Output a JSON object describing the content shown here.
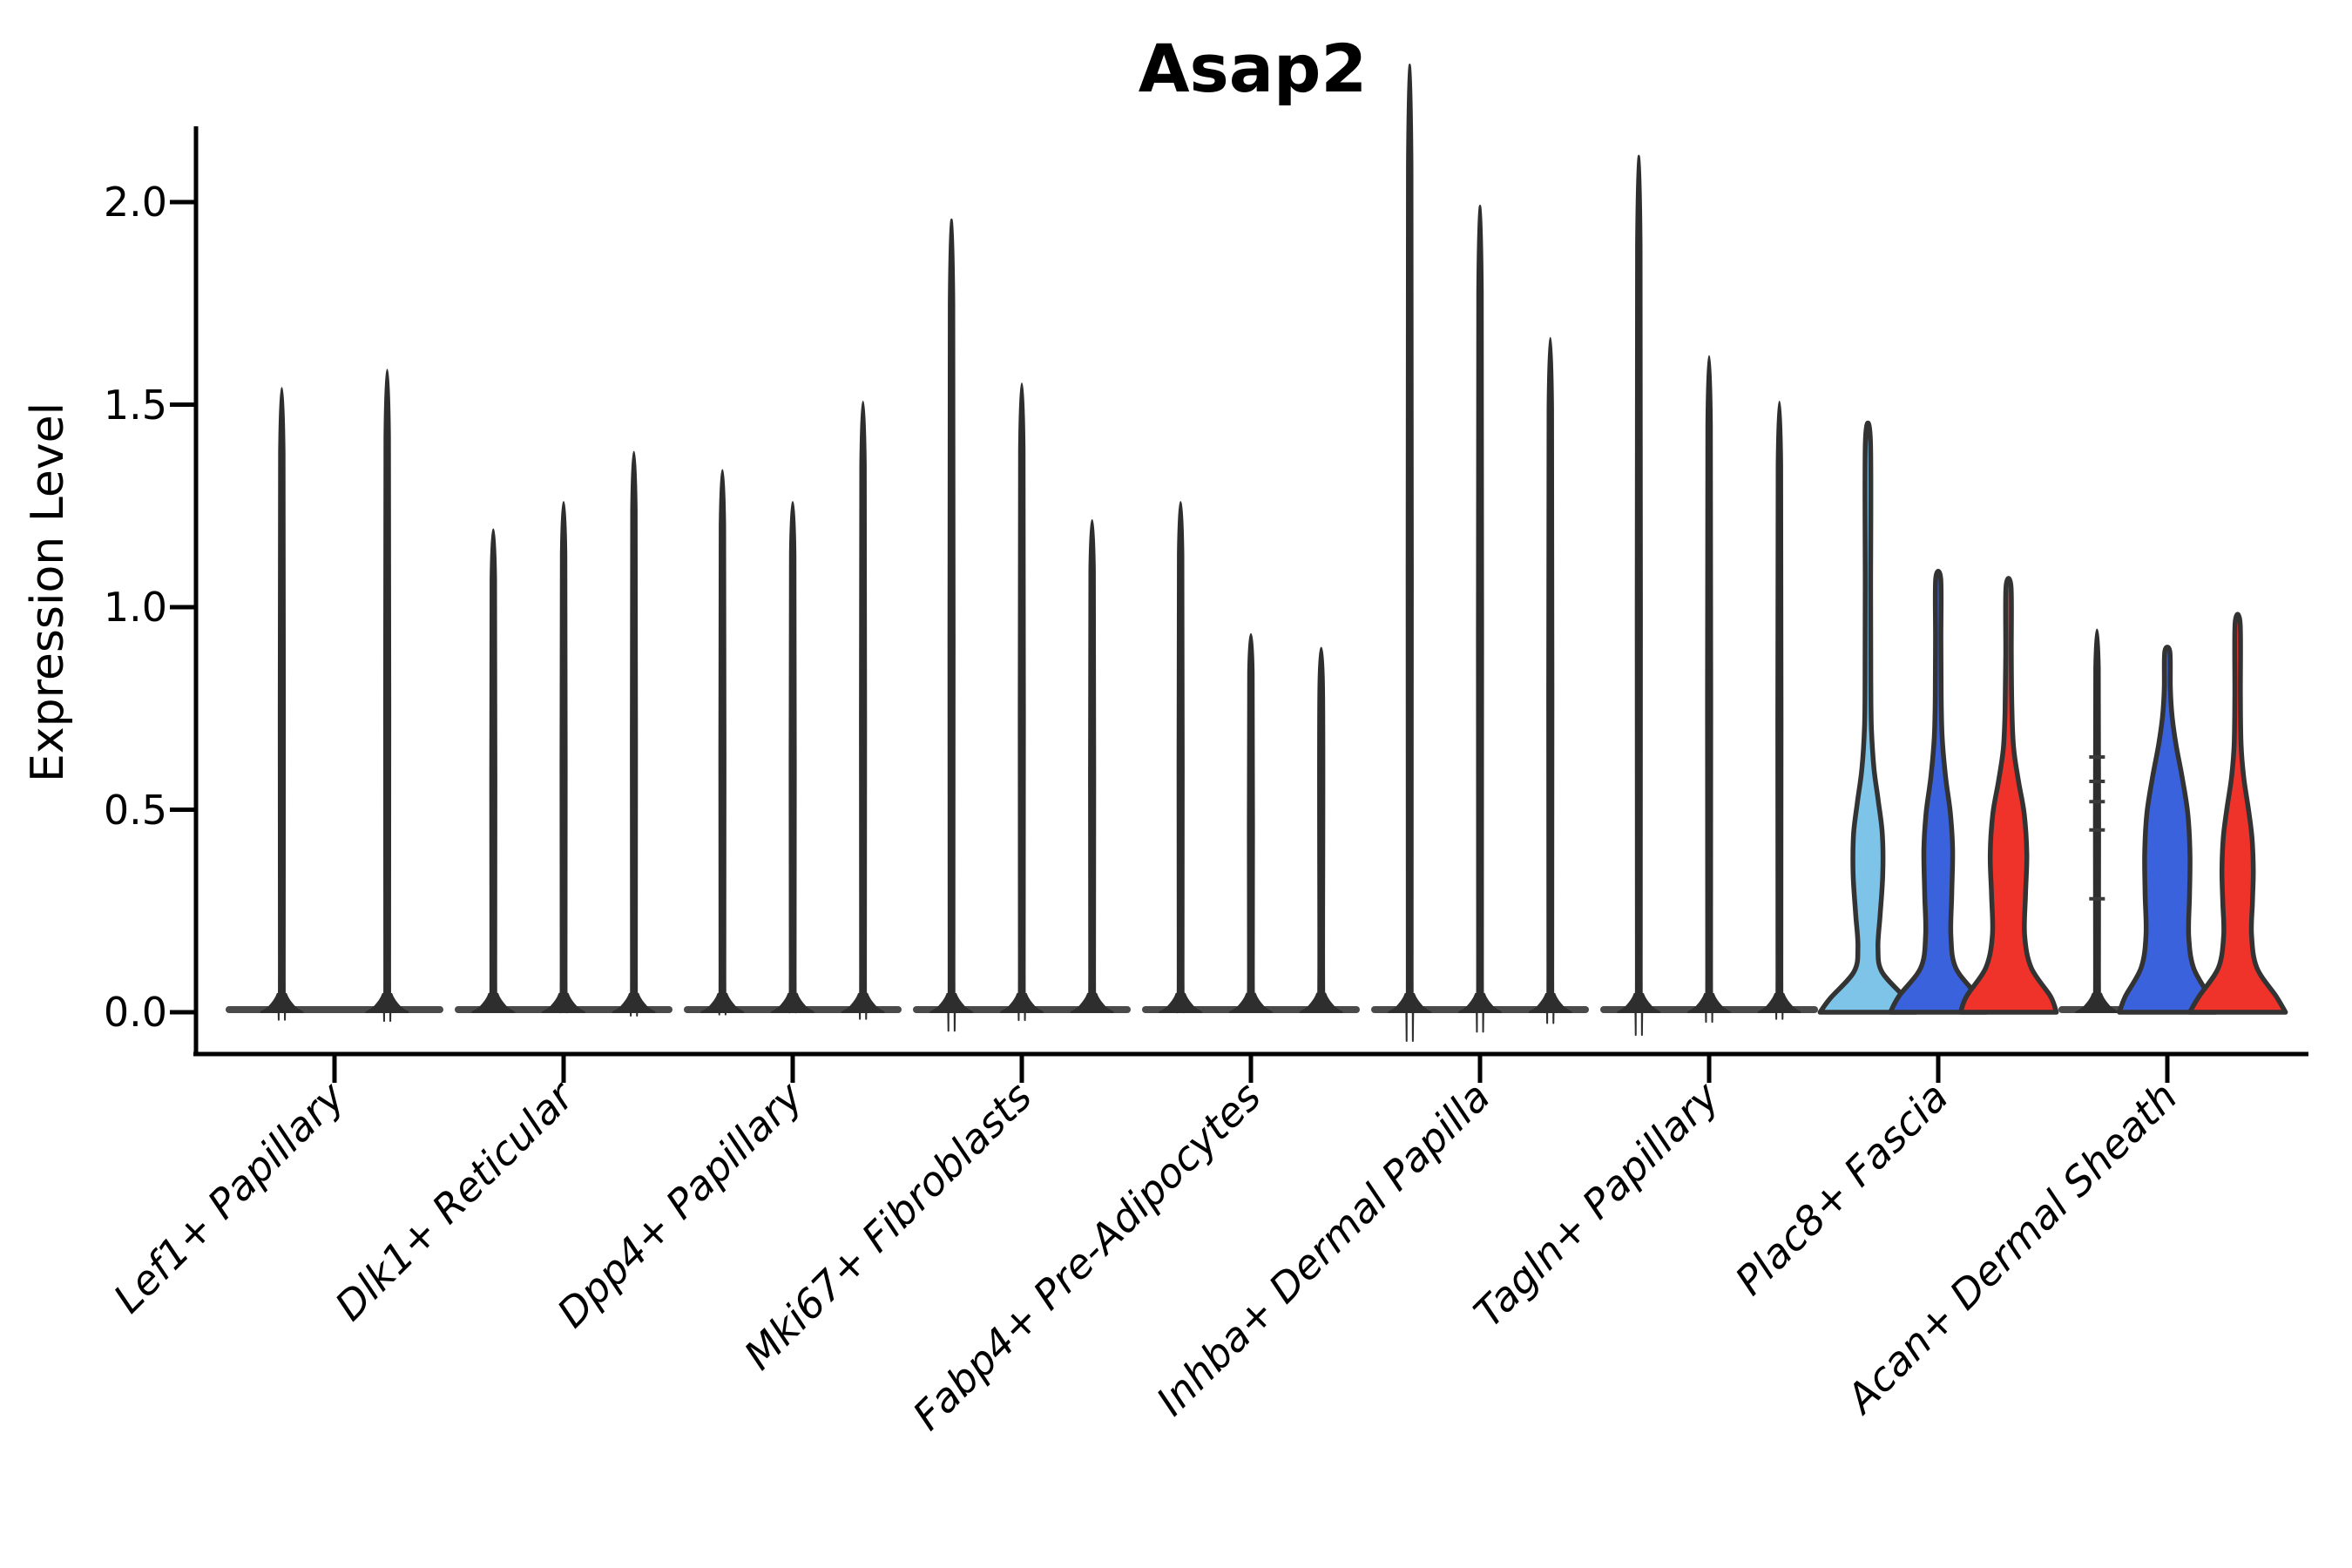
{
  "title": "Asap2",
  "y_axis": {
    "label": "Expression Level",
    "tick_labels": [
      "2.0",
      "1.5",
      "1.0",
      "0.5",
      "0.0"
    ]
  },
  "colors": {
    "axis": "#000000",
    "spike_fill": "#2e2e2e",
    "violin_stroke": "#333333",
    "baseline": "#4a4a4a",
    "light_blue": "#7EC4E8",
    "blue": "#3A62DC",
    "red": "#EF332B"
  },
  "chart_data": {
    "type": "violin",
    "title": "Asap2",
    "xlabel": "",
    "ylabel": "Expression Level",
    "ylim": [
      0,
      2.2
    ],
    "yticks": [
      0.0,
      0.5,
      1.0,
      1.5,
      2.0
    ],
    "ytick_labels": [
      "0.0",
      "0.5",
      "1.0",
      "1.5",
      "2.0"
    ],
    "grid": false,
    "legend": "none",
    "categories": [
      "Lef1+ Papillary",
      "Dlk1+ Reticular",
      "Dpp4+ Papillary",
      "Mki67+ Fibroblasts",
      "Fabp4+ Pre-Adipocytes",
      "Inhba+ Dermal Papilla",
      "Tagln+ Papillary",
      "Plac8+ Fascia",
      "Acan+ Dermal Sheath"
    ],
    "groups": [
      {
        "category": "Lef1+ Papillary",
        "violins": [
          {
            "type": "spike",
            "max": 1.38,
            "color": "#2e2e2e"
          },
          {
            "type": "spike",
            "max": 1.42,
            "color": "#2e2e2e"
          }
        ]
      },
      {
        "category": "Dlk1+ Reticular",
        "violins": [
          {
            "type": "spike",
            "max": 1.07,
            "color": "#2e2e2e"
          },
          {
            "type": "spike",
            "max": 1.13,
            "color": "#2e2e2e"
          },
          {
            "type": "spike",
            "max": 1.24,
            "color": "#2e2e2e"
          }
        ]
      },
      {
        "category": "Dpp4+ Papillary",
        "violins": [
          {
            "type": "spike",
            "max": 1.2,
            "color": "#2e2e2e"
          },
          {
            "type": "spike",
            "max": 1.13,
            "color": "#2e2e2e"
          },
          {
            "type": "spike",
            "max": 1.35,
            "color": "#2e2e2e"
          }
        ]
      },
      {
        "category": "Mki67+ Fibroblasts",
        "violins": [
          {
            "type": "spike",
            "max": 1.75,
            "color": "#2e2e2e"
          },
          {
            "type": "spike",
            "max": 1.39,
            "color": "#2e2e2e"
          },
          {
            "type": "spike",
            "max": 1.09,
            "color": "#2e2e2e"
          }
        ]
      },
      {
        "category": "Fabp4+ Pre-Adipocytes",
        "violins": [
          {
            "type": "spike",
            "max": 1.13,
            "color": "#2e2e2e"
          },
          {
            "type": "spike",
            "max": 0.84,
            "color": "#2e2e2e"
          },
          {
            "type": "spike",
            "max": 0.81,
            "color": "#2e2e2e"
          }
        ]
      },
      {
        "category": "Inhba+ Dermal Papilla",
        "violins": [
          {
            "type": "spike",
            "max": 2.09,
            "color": "#2e2e2e"
          },
          {
            "type": "spike",
            "max": 1.78,
            "color": "#2e2e2e"
          },
          {
            "type": "spike",
            "max": 1.49,
            "color": "#2e2e2e"
          }
        ]
      },
      {
        "category": "Tagln+ Papillary",
        "violins": [
          {
            "type": "spike",
            "max": 1.89,
            "color": "#2e2e2e"
          },
          {
            "type": "spike",
            "max": 1.45,
            "color": "#2e2e2e"
          },
          {
            "type": "spike",
            "max": 1.35,
            "color": "#2e2e2e"
          }
        ]
      },
      {
        "category": "Plac8+ Fascia",
        "violins": [
          {
            "type": "violin",
            "max": 1.41,
            "color": "#7EC4E8",
            "color_name": "light-blue",
            "profile": [
              [
                0,
                55
              ],
              [
                0.035,
                43
              ],
              [
                0.1,
                16
              ],
              [
                0.16,
                11.5
              ],
              [
                0.24,
                14
              ],
              [
                0.34,
                17
              ],
              [
                0.44,
                16.5
              ],
              [
                0.52,
                12
              ],
              [
                0.6,
                7
              ],
              [
                0.7,
                4
              ],
              [
                0.82,
                3.3
              ],
              [
                1.05,
                3.1
              ]
            ]
          },
          {
            "type": "violin",
            "max": 1.07,
            "color": "#3A62DC",
            "color_name": "blue",
            "profile": [
              [
                0,
                55
              ],
              [
                0.04,
                45
              ],
              [
                0.11,
                20
              ],
              [
                0.19,
                14.5
              ],
              [
                0.29,
                15.5
              ],
              [
                0.4,
                16.5
              ],
              [
                0.49,
                14
              ],
              [
                0.58,
                8.5
              ],
              [
                0.68,
                4.5
              ],
              [
                0.78,
                3.4
              ],
              [
                0.92,
                3.1
              ]
            ]
          },
          {
            "type": "violin",
            "max": 1.05,
            "color": "#EF332B",
            "color_name": "red",
            "profile": [
              [
                0,
                55
              ],
              [
                0.04,
                48
              ],
              [
                0.11,
                26
              ],
              [
                0.19,
                18.5
              ],
              [
                0.29,
                19.5
              ],
              [
                0.39,
                21
              ],
              [
                0.49,
                18
              ],
              [
                0.57,
                11.5
              ],
              [
                0.65,
                6
              ],
              [
                0.74,
                4
              ],
              [
                0.88,
                3.2
              ]
            ]
          }
        ]
      },
      {
        "category": "Acan+ Dermal Sheath",
        "violins": [
          {
            "type": "spike",
            "max": 0.85,
            "color": "#2e2e2e",
            "dashes": [
              0.63,
              0.57,
              0.52,
              0.45,
              0.28
            ]
          },
          {
            "type": "violin",
            "max": 0.89,
            "color": "#3A62DC",
            "color_name": "blue",
            "profile": [
              [
                0,
                55
              ],
              [
                0.04,
                48
              ],
              [
                0.11,
                30
              ],
              [
                0.19,
                24.5
              ],
              [
                0.29,
                25.5
              ],
              [
                0.39,
                26
              ],
              [
                0.49,
                23.5
              ],
              [
                0.58,
                17
              ],
              [
                0.66,
                10
              ],
              [
                0.73,
                5.5
              ],
              [
                0.8,
                3.5
              ]
            ]
          },
          {
            "type": "violin",
            "max": 0.96,
            "color": "#EF332B",
            "color_name": "red",
            "profile": [
              [
                0,
                55
              ],
              [
                0.04,
                44
              ],
              [
                0.11,
                22
              ],
              [
                0.19,
                16
              ],
              [
                0.27,
                17
              ],
              [
                0.35,
                18
              ],
              [
                0.43,
                16.5
              ],
              [
                0.5,
                12.5
              ],
              [
                0.58,
                7
              ],
              [
                0.66,
                4
              ],
              [
                0.78,
                3.2
              ]
            ]
          }
        ]
      }
    ]
  }
}
